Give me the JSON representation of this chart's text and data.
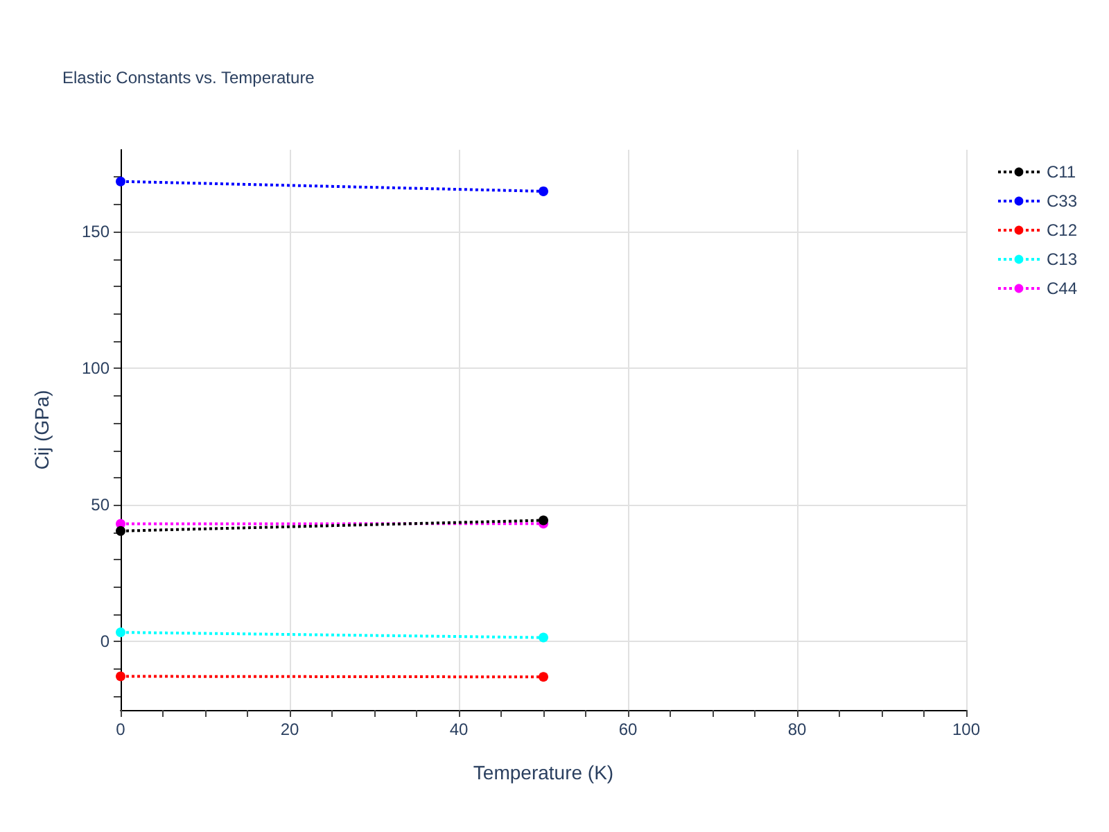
{
  "chart_data": {
    "type": "line",
    "title": "Elastic Constants vs. Temperature",
    "xlabel": "Temperature (K)",
    "ylabel": "Cij (GPa)",
    "x": [
      0,
      50
    ],
    "series": [
      {
        "name": "C11",
        "color": "#000000",
        "values": [
          40.5,
          44.4
        ]
      },
      {
        "name": "C33",
        "color": "#0000ff",
        "values": [
          168.4,
          164.8
        ]
      },
      {
        "name": "C12",
        "color": "#ff0000",
        "values": [
          -12.7,
          -12.9
        ]
      },
      {
        "name": "C13",
        "color": "#00ffff",
        "values": [
          3.4,
          1.5
        ]
      },
      {
        "name": "C44",
        "color": "#ff00ff",
        "values": [
          43.1,
          43.2
        ]
      }
    ],
    "xlim": [
      0,
      100
    ],
    "xticks": [
      0,
      20,
      40,
      60,
      80,
      100
    ],
    "ylim": [
      -25,
      180
    ],
    "yticks": [
      0,
      50,
      100,
      150
    ],
    "grid": true,
    "legend": "top right",
    "marker": "circle",
    "line_style": "dotted"
  }
}
